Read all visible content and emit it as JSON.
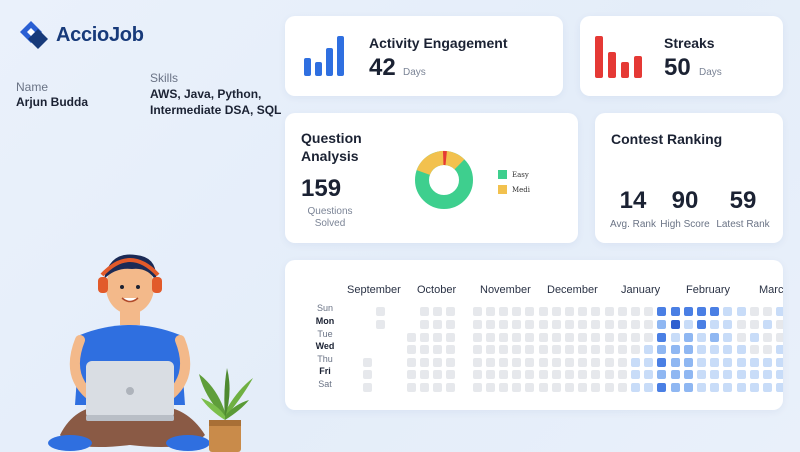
{
  "brand": {
    "name": "AccioJob",
    "logo_color": "#2a5fd3"
  },
  "profile": {
    "name_label": "Name",
    "name_value": "Arjun Budda",
    "skills_label": "Skills",
    "skills_line1": "AWS, Java, Python,",
    "skills_line2": "Intermediate DSA, SQL"
  },
  "activity": {
    "title": "Activity Engagement",
    "value": "42",
    "unit": "Days",
    "icon": "blue-bar-chart-icon",
    "color": "#2f6fe0"
  },
  "streaks": {
    "title": "Streaks",
    "value": "50",
    "unit": "Days",
    "icon": "red-bar-chart-icon",
    "color": "#e53935"
  },
  "questions": {
    "title_line1": "Question",
    "title_line2": "Analysis",
    "value": "159",
    "label_line1": "Questions",
    "label_line2": "Solved",
    "legend": [
      {
        "label": "Easy",
        "color": "#3ecf8e"
      },
      {
        "label": "Medi",
        "color": "#f2c14e"
      }
    ],
    "donut_colors": [
      "#3ecf8e",
      "#f2c14e",
      "#e53935"
    ]
  },
  "contest": {
    "title": "Contest Ranking",
    "stats": [
      {
        "value": "14",
        "label": "Avg. Rank"
      },
      {
        "value": "90",
        "label": "High Score"
      },
      {
        "value": "59",
        "label": "Latest Rank"
      }
    ]
  },
  "calendar": {
    "months": [
      "September",
      "October",
      "November",
      "December",
      "January",
      "February",
      "March"
    ],
    "days": [
      "Sun",
      "Mon",
      "Tue",
      "Wed",
      "Thu",
      "Fri",
      "Sat"
    ]
  },
  "illustration": {
    "person": "person-with-laptop",
    "plant": "potted-plant"
  }
}
